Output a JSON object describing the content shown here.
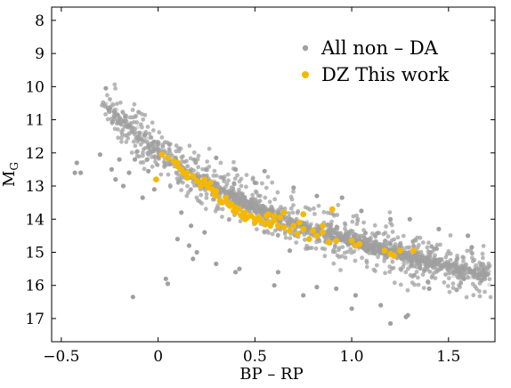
{
  "chart_data": {
    "type": "scatter",
    "xlabel": "BP – RP",
    "ylabel": "M",
    "ylabel_sub": "G",
    "xlim": [
      -0.55,
      1.74
    ],
    "ylim": [
      17.7,
      7.6
    ],
    "y_inverted": true,
    "xticks": [
      -0.5,
      0,
      0.5,
      1.0,
      1.5
    ],
    "xtick_labels": [
      "−0.5",
      "0",
      "0.5",
      "1.0",
      "1.5"
    ],
    "yticks": [
      8,
      9,
      10,
      11,
      12,
      13,
      14,
      15,
      16,
      17
    ],
    "ytick_labels": [
      "8",
      "9",
      "10",
      "11",
      "12",
      "13",
      "14",
      "15",
      "16",
      "17"
    ],
    "grid": false,
    "legend_position": "top-right",
    "series": [
      {
        "name": "All non – DA",
        "color": "#a0a0a0",
        "core_color": "#2a2a2a",
        "description_of_distribution": "dense cooling sequence",
        "sequence": [
          [
            -0.28,
            10.45
          ],
          [
            -0.2,
            10.9
          ],
          [
            -0.1,
            11.45
          ],
          [
            0.0,
            12.0
          ],
          [
            0.1,
            12.35
          ],
          [
            0.2,
            12.7
          ],
          [
            0.3,
            13.05
          ],
          [
            0.4,
            13.35
          ],
          [
            0.5,
            13.65
          ],
          [
            0.6,
            13.9
          ],
          [
            0.7,
            14.1
          ],
          [
            0.8,
            14.3
          ],
          [
            0.9,
            14.5
          ],
          [
            1.0,
            14.65
          ],
          [
            1.1,
            14.85
          ],
          [
            1.2,
            15.0
          ],
          [
            1.3,
            15.15
          ],
          [
            1.4,
            15.3
          ],
          [
            1.5,
            15.45
          ],
          [
            1.6,
            15.55
          ],
          [
            1.7,
            15.7
          ]
        ],
        "outliers": [
          [
            -0.42,
            12.3
          ],
          [
            -0.43,
            12.6
          ],
          [
            -0.4,
            12.6
          ],
          [
            -0.27,
            10.05
          ],
          [
            -0.3,
            12.05
          ],
          [
            -0.2,
            12.2
          ],
          [
            -0.24,
            12.5
          ],
          [
            -0.22,
            12.8
          ],
          [
            -0.15,
            12.6
          ],
          [
            -0.12,
            12.2
          ],
          [
            -0.05,
            12.55
          ],
          [
            -0.13,
            16.35
          ],
          [
            -0.18,
            13.0
          ],
          [
            -0.08,
            13.35
          ],
          [
            -0.02,
            13.1
          ],
          [
            0.04,
            15.8
          ],
          [
            0.05,
            15.95
          ],
          [
            0.1,
            14.6
          ],
          [
            0.12,
            13.8
          ],
          [
            0.16,
            14.8
          ],
          [
            0.17,
            14.2
          ],
          [
            0.18,
            15.2
          ],
          [
            0.2,
            15.0
          ],
          [
            0.24,
            14.4
          ],
          [
            0.3,
            15.35
          ],
          [
            0.4,
            15.6
          ],
          [
            0.42,
            15.5
          ],
          [
            0.6,
            16.0
          ],
          [
            0.62,
            15.6
          ],
          [
            0.68,
            14.95
          ],
          [
            0.82,
            16.05
          ],
          [
            0.92,
            16.1
          ],
          [
            1.0,
            16.7
          ],
          [
            1.02,
            16.3
          ],
          [
            1.15,
            16.6
          ],
          [
            1.28,
            16.95
          ],
          [
            1.29,
            16.9
          ],
          [
            1.2,
            17.15
          ],
          [
            0.75,
            16.3
          ],
          [
            0.3,
            12.15
          ],
          [
            0.4,
            12.5
          ],
          [
            0.5,
            12.9
          ],
          [
            0.55,
            12.55
          ],
          [
            0.7,
            13.05
          ],
          [
            0.82,
            13.3
          ],
          [
            0.95,
            13.35
          ],
          [
            1.05,
            13.75
          ],
          [
            1.2,
            14.0
          ],
          [
            1.3,
            14.0
          ],
          [
            1.45,
            14.3
          ],
          [
            1.6,
            14.5
          ],
          [
            1.62,
            14.85
          ],
          [
            1.58,
            15.8
          ],
          [
            1.4,
            16.1
          ]
        ]
      },
      {
        "name": "DZ This work",
        "color": "#f5b800",
        "points": [
          [
            -0.01,
            12.8
          ],
          [
            0.02,
            12.05
          ],
          [
            0.05,
            12.15
          ],
          [
            0.08,
            12.25
          ],
          [
            0.1,
            12.3
          ],
          [
            0.1,
            12.4
          ],
          [
            0.12,
            12.5
          ],
          [
            0.13,
            12.6
          ],
          [
            0.15,
            12.6
          ],
          [
            0.15,
            12.75
          ],
          [
            0.18,
            12.7
          ],
          [
            0.2,
            12.85
          ],
          [
            0.22,
            12.9
          ],
          [
            0.22,
            13.0
          ],
          [
            0.24,
            12.8
          ],
          [
            0.25,
            12.95
          ],
          [
            0.26,
            13.05
          ],
          [
            0.27,
            12.9
          ],
          [
            0.28,
            13.1
          ],
          [
            0.29,
            13.25
          ],
          [
            0.3,
            13.15
          ],
          [
            0.3,
            13.3
          ],
          [
            0.32,
            13.45
          ],
          [
            0.33,
            13.5
          ],
          [
            0.35,
            13.35
          ],
          [
            0.36,
            13.5
          ],
          [
            0.37,
            13.6
          ],
          [
            0.38,
            13.55
          ],
          [
            0.39,
            13.75
          ],
          [
            0.4,
            13.65
          ],
          [
            0.4,
            13.8
          ],
          [
            0.42,
            13.7
          ],
          [
            0.43,
            13.9
          ],
          [
            0.44,
            13.85
          ],
          [
            0.45,
            13.8
          ],
          [
            0.45,
            14.0
          ],
          [
            0.46,
            13.95
          ],
          [
            0.48,
            13.9
          ],
          [
            0.5,
            14.0
          ],
          [
            0.5,
            14.1
          ],
          [
            0.52,
            13.95
          ],
          [
            0.53,
            14.05
          ],
          [
            0.55,
            14.15
          ],
          [
            0.56,
            13.9
          ],
          [
            0.57,
            14.1
          ],
          [
            0.58,
            14.2
          ],
          [
            0.6,
            14.05
          ],
          [
            0.62,
            14.2
          ],
          [
            0.63,
            13.95
          ],
          [
            0.65,
            14.25
          ],
          [
            0.68,
            14.35
          ],
          [
            0.7,
            14.2
          ],
          [
            0.72,
            14.45
          ],
          [
            0.73,
            14.1
          ],
          [
            0.75,
            13.85
          ],
          [
            0.75,
            14.3
          ],
          [
            0.78,
            14.6
          ],
          [
            0.8,
            14.35
          ],
          [
            0.82,
            14.5
          ],
          [
            0.85,
            14.2
          ],
          [
            0.88,
            14.7
          ],
          [
            0.9,
            13.7
          ],
          [
            0.92,
            14.65
          ],
          [
            1.0,
            14.65
          ],
          [
            1.02,
            14.8
          ],
          [
            1.04,
            14.75
          ],
          [
            1.17,
            14.95
          ],
          [
            1.2,
            15.05
          ],
          [
            1.22,
            15.1
          ],
          [
            1.25,
            14.95
          ],
          [
            1.32,
            14.95
          ],
          [
            0.65,
            13.8
          ],
          [
            0.6,
            13.9
          ],
          [
            0.85,
            14.4
          ],
          [
            0.57,
            13.85
          ]
        ]
      }
    ]
  }
}
